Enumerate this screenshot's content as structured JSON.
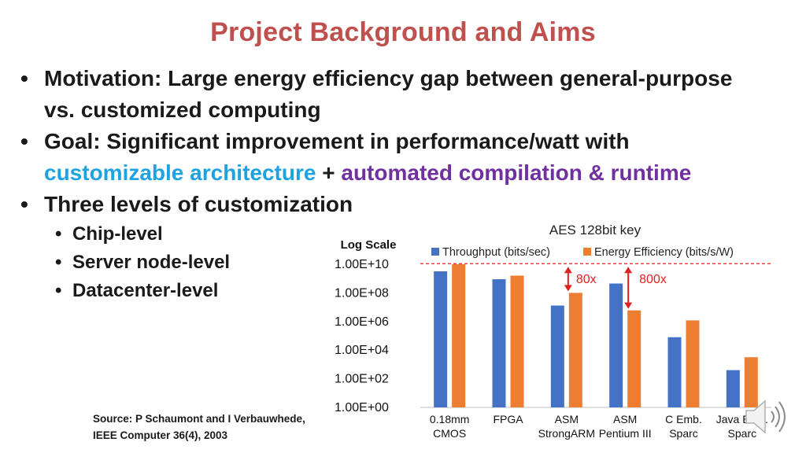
{
  "slide": {
    "title": "Project Background and Aims",
    "bullets": {
      "motivation_line1": "Motivation: Large energy efficiency gap between general-purpose",
      "motivation_line2": "vs. customized computing",
      "goal_line1": "Goal: Significant improvement in performance/watt with",
      "goal_blue": "customizable architecture",
      "goal_plus": " + ",
      "goal_purple": "automated compilation & runtime",
      "levels": "Three levels of customization",
      "sub": [
        "Chip-level",
        "Server node-level",
        "Datacenter-level"
      ]
    },
    "bullet_glyph": "•",
    "source_line1": "Source: P Schaumont and I Verbauwhede,",
    "source_line2": "IEEE Computer 36(4), 2003",
    "speaker_icon": "speaker-icon"
  },
  "chart_data": {
    "type": "bar",
    "title": "AES 128bit key",
    "ylabel": "Log Scale",
    "yscale": "log",
    "ylim": [
      1,
      10000000000
    ],
    "yticks": [
      "1.00E+00",
      "1.00E+02",
      "1.00E+04",
      "1.00E+06",
      "1.00E+08",
      "1.00E+10"
    ],
    "categories": [
      [
        "0.18mm",
        "CMOS"
      ],
      [
        "FPGA",
        ""
      ],
      [
        "ASM",
        "StrongARM"
      ],
      [
        "ASM",
        "Pentium III"
      ],
      [
        "C Emb.",
        "Sparc"
      ],
      [
        "Java Emb.",
        "Sparc"
      ]
    ],
    "series": [
      {
        "name": "Throughput (bits/sec)",
        "color": "#4472c4",
        "values": [
          3200000000.0,
          900000000.0,
          13000000.0,
          450000000.0,
          80000.0,
          400.0
        ]
      },
      {
        "name": "Energy Efficiency (bits/s/W)",
        "color": "#ed7d31",
        "values": [
          10000000000.0,
          1600000000.0,
          100000000.0,
          6000000.0,
          1200000.0,
          3200.0
        ]
      }
    ],
    "reference_line": {
      "value": 11000000000.0,
      "color": "#e02020"
    },
    "annotations": [
      {
        "label": "80x",
        "color": "#e02020"
      },
      {
        "label": "800x",
        "color": "#e02020"
      }
    ],
    "legend": "top",
    "grid": false
  }
}
